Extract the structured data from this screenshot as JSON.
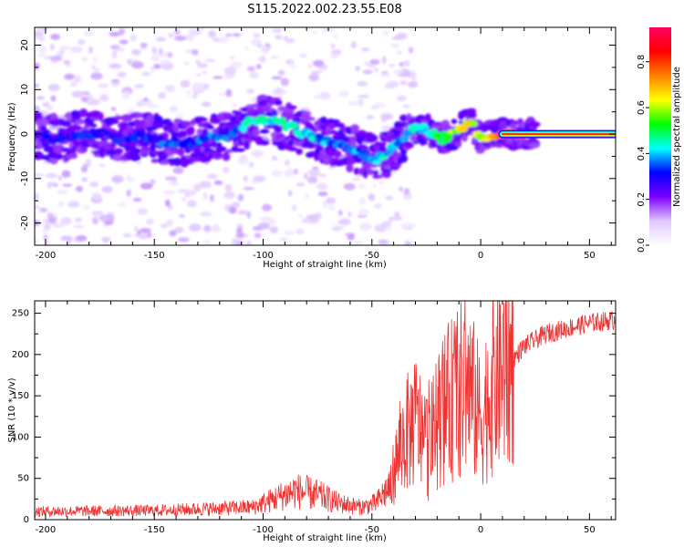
{
  "figure_title": "S115.2022.002.23.55.E08",
  "chart_data": [
    {
      "type": "heatmap",
      "title": "S115.2022.002.23.55.E08",
      "xlabel": "Height of straight line (km)",
      "ylabel": "Frequency (Hz)",
      "xlim": [
        -205,
        62
      ],
      "ylim": [
        -25,
        24
      ],
      "xticks": [
        -200,
        -150,
        -100,
        -50,
        0,
        50
      ],
      "yticks": [
        -20,
        -10,
        0,
        10,
        20
      ],
      "colorbar": {
        "label": "Normalized spectral amplitude",
        "range": [
          0,
          0.95
        ],
        "ticks": [
          "0.0",
          "0.2",
          "0.4",
          "0.6",
          "0.8"
        ],
        "tick_values": [
          0.0,
          0.2,
          0.4,
          0.6,
          0.8
        ],
        "colors": [
          "#ffffff",
          "#e0c8ff",
          "#7a00ff",
          "#0000ff",
          "#00ffff",
          "#00ff00",
          "#ffff00",
          "#ff8000",
          "#ff0000",
          "#ff0060"
        ]
      },
      "ridge": {
        "x": [
          -205,
          -195,
          -185,
          -175,
          -165,
          -155,
          -145,
          -135,
          -125,
          -115,
          -105,
          -95,
          -85,
          -75,
          -65,
          -55,
          -48,
          -40,
          -32,
          -25,
          -18,
          -12,
          -5,
          0,
          5,
          15,
          30,
          50,
          62
        ],
        "y": [
          0,
          -1,
          0,
          0,
          -1,
          0,
          -2,
          -2,
          -1,
          0,
          3,
          3,
          1,
          -1,
          -2,
          -4,
          -6,
          -3,
          1,
          1,
          -1,
          0,
          3,
          -1,
          0,
          0,
          0,
          0,
          0
        ],
        "amplitude": [
          0.3,
          0.3,
          0.3,
          0.3,
          0.3,
          0.3,
          0.35,
          0.35,
          0.35,
          0.35,
          0.45,
          0.45,
          0.5,
          0.4,
          0.35,
          0.4,
          0.45,
          0.4,
          0.45,
          0.45,
          0.55,
          0.6,
          0.7,
          0.6,
          0.75,
          0.85,
          0.9,
          0.9,
          0.9
        ]
      }
    },
    {
      "type": "line",
      "xlabel": "Height of straight line (km)",
      "ylabel": "SNR (10 * v/v)",
      "xlim": [
        -205,
        62
      ],
      "ylim": [
        0,
        265
      ],
      "xticks": [
        -200,
        -150,
        -100,
        -50,
        0,
        50
      ],
      "yticks": [
        0,
        50,
        100,
        150,
        200,
        250
      ],
      "series": [
        {
          "name": "SNR",
          "color": "#ee3333",
          "envelope_x": [
            -205,
            -150,
            -105,
            -95,
            -85,
            -75,
            -65,
            -55,
            -48,
            -42,
            -36,
            -30,
            -24,
            -18,
            -12,
            -6,
            0,
            6,
            12,
            20,
            30,
            40,
            50,
            62
          ],
          "envelope_y": [
            10,
            11,
            15,
            25,
            35,
            30,
            20,
            15,
            20,
            40,
            95,
            120,
            90,
            130,
            150,
            165,
            120,
            170,
            185,
            210,
            225,
            232,
            238,
            242
          ]
        }
      ]
    }
  ]
}
